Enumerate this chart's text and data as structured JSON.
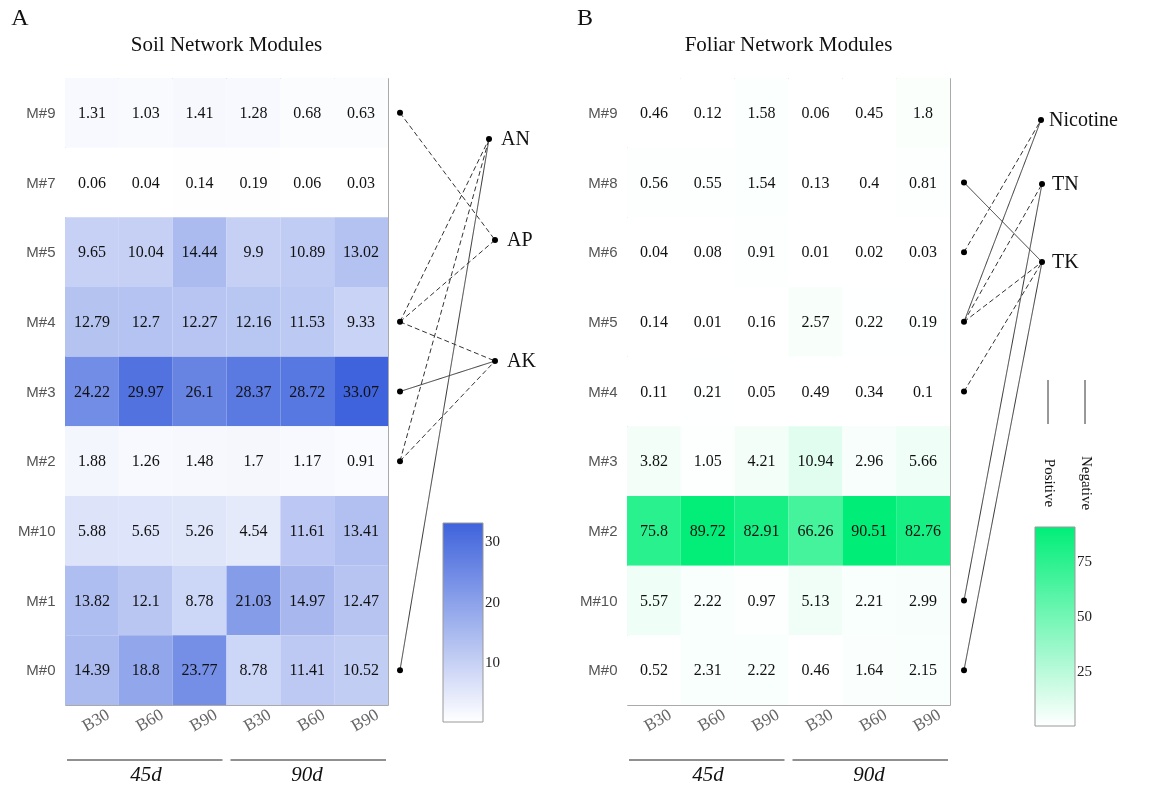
{
  "chart_data": [
    {
      "type": "heatmap",
      "title": "Soil Network Modules",
      "categories": [
        "B30",
        "B60",
        "B90",
        "B30",
        "B60",
        "B90"
      ],
      "y_categories": [
        "M#9",
        "M#7",
        "M#5",
        "M#4",
        "M#3",
        "M#2",
        "M#10",
        "M#1",
        "M#0"
      ],
      "cells": [
        [
          1.31,
          1.03,
          1.41,
          1.28,
          0.68,
          0.63
        ],
        [
          0.06,
          0.04,
          0.14,
          0.19,
          0.06,
          0.03
        ],
        [
          9.65,
          10.04,
          14.44,
          9.9,
          10.89,
          13.02
        ],
        [
          12.79,
          12.7,
          12.27,
          12.16,
          11.53,
          9.33
        ],
        [
          24.22,
          29.97,
          26.1,
          28.37,
          28.72,
          33.07
        ],
        [
          1.88,
          1.26,
          1.48,
          1.7,
          1.17,
          0.91
        ],
        [
          5.88,
          5.65,
          5.26,
          4.54,
          11.61,
          13.41
        ],
        [
          13.82,
          12.1,
          8.78,
          21.03,
          14.97,
          12.47
        ],
        [
          14.39,
          18.8,
          23.77,
          8.78,
          11.41,
          10.52
        ]
      ],
      "clim": [
        0,
        33.07
      ],
      "cticks": [
        10,
        20,
        30
      ],
      "colors": [
        "#ffffff",
        "#3f63dc"
      ],
      "data_labels": true,
      "annotations": [
        "A",
        "AN",
        "AP",
        "AK",
        "45d",
        "90d"
      ]
    },
    {
      "type": "heatmap",
      "title": "Foliar Network Modules",
      "categories": [
        "B30",
        "B60",
        "B90",
        "B30",
        "B60",
        "B90"
      ],
      "y_categories": [
        "M#9",
        "M#8",
        "M#6",
        "M#5",
        "M#4",
        "M#3",
        "M#2",
        "M#10",
        "M#0"
      ],
      "cells": [
        [
          0.46,
          0.12,
          1.58,
          0.06,
          0.45,
          1.8
        ],
        [
          0.56,
          0.55,
          1.54,
          0.13,
          0.4,
          0.81
        ],
        [
          0.04,
          0.08,
          0.91,
          0.01,
          0.02,
          0.03
        ],
        [
          0.14,
          0.01,
          0.16,
          2.57,
          0.22,
          0.19
        ],
        [
          0.11,
          0.21,
          0.05,
          0.49,
          0.34,
          0.1
        ],
        [
          3.82,
          1.05,
          4.21,
          10.94,
          2.96,
          5.66
        ],
        [
          75.8,
          89.72,
          82.91,
          66.26,
          90.51,
          82.76
        ],
        [
          5.57,
          2.22,
          0.97,
          5.13,
          2.21,
          2.99
        ],
        [
          0.52,
          2.31,
          2.22,
          0.46,
          1.64,
          2.15
        ]
      ],
      "clim": [
        0,
        90.51
      ],
      "cticks": [
        25,
        50,
        75
      ],
      "colors": [
        "#ffffff",
        "#00ee78"
      ],
      "data_labels": true,
      "annotations": [
        "B",
        "Nicotine",
        "TN",
        "TK",
        "Positive",
        "Negative",
        "45d",
        "90d"
      ]
    }
  ]
}
